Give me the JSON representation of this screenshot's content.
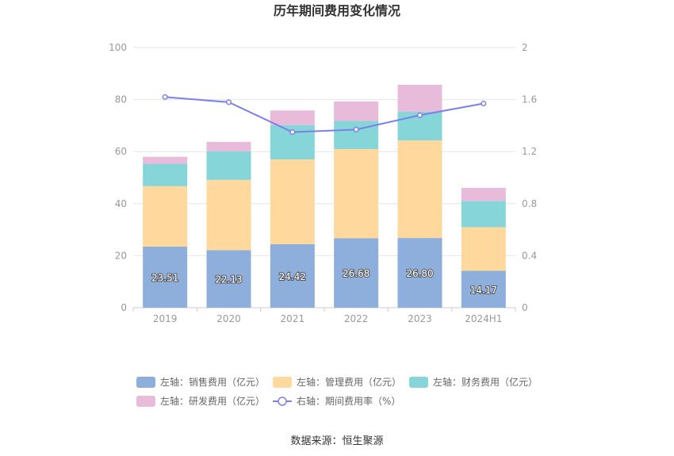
{
  "chart_data": {
    "type": "bar",
    "stacked": true,
    "title": "历年期间费用变化情况",
    "categories": [
      "2019",
      "2020",
      "2021",
      "2022",
      "2023",
      "2024H1"
    ],
    "series": [
      {
        "name": "左轴：销售费用（亿元）",
        "axis": "left",
        "type": "bar",
        "color": "#8eaedb",
        "values": [
          23.51,
          22.13,
          24.42,
          26.68,
          26.8,
          14.17
        ]
      },
      {
        "name": "左轴：管理费用（亿元）",
        "axis": "left",
        "type": "bar",
        "color": "#fed89c",
        "values": [
          23.2,
          27.0,
          32.6,
          34.3,
          37.5,
          16.8
        ]
      },
      {
        "name": "左轴：财务费用（亿元）",
        "axis": "left",
        "type": "bar",
        "color": "#86d5d8",
        "values": [
          8.6,
          11.0,
          13.2,
          10.8,
          11.0,
          10.1
        ]
      },
      {
        "name": "左轴：研发费用（亿元）",
        "axis": "left",
        "type": "bar",
        "color": "#e9bbdb",
        "values": [
          2.7,
          3.6,
          5.6,
          7.5,
          10.4,
          5.0
        ]
      },
      {
        "name": "右轴：期间费用率（%）",
        "axis": "right",
        "type": "line",
        "color": "#7b7fe8",
        "values": [
          1.62,
          1.58,
          1.35,
          1.37,
          1.48,
          1.57
        ]
      }
    ],
    "bar_value_labels": [
      "23.51",
      "22.13",
      "24.42",
      "26.68",
      "26.80",
      "14.17"
    ],
    "y_left": {
      "min": 0,
      "max": 100,
      "ticks": [
        "0",
        "20",
        "40",
        "60",
        "80",
        "100"
      ]
    },
    "y_right": {
      "min": 0,
      "max": 2,
      "ticks": [
        "0",
        "0.4",
        "0.8",
        "1.2",
        "1.6",
        "2"
      ]
    },
    "grid": true,
    "legend_position": "bottom"
  },
  "source": "数据来源：恒生聚源"
}
